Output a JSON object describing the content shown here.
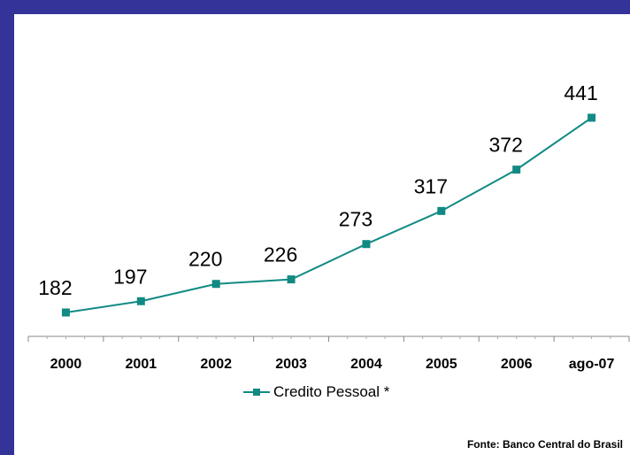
{
  "chart_data": {
    "type": "line",
    "categories": [
      "2000",
      "2001",
      "2002",
      "2003",
      "2004",
      "2005",
      "2006",
      "ago-07"
    ],
    "series": [
      {
        "name": "Credito Pessoal *",
        "values": [
          182,
          197,
          220,
          226,
          273,
          317,
          372,
          441
        ]
      }
    ],
    "data_labels": [
      "182",
      "197",
      "220",
      "226",
      "273",
      "317",
      "372",
      "441"
    ],
    "title": "",
    "xlabel": "",
    "ylabel": "",
    "ylim": [
      140,
      470
    ],
    "grid": false,
    "legend": "bottom",
    "line_color": "#118a84"
  },
  "source": "Fonte: Banco Central do Brasil",
  "colors": {
    "background": "#33339a",
    "plot": "#ffffff"
  }
}
